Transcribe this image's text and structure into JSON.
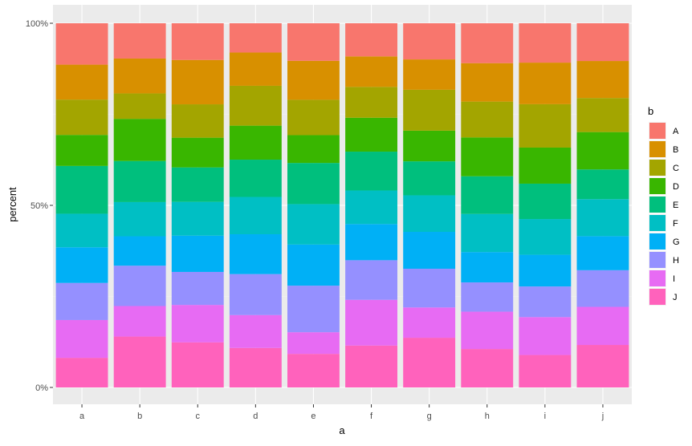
{
  "chart_data": {
    "type": "bar",
    "stacked": true,
    "normalized": true,
    "title": "",
    "xlabel": "a",
    "ylabel": "percent",
    "ylim": [
      0,
      1
    ],
    "y_ticks": [
      "0%",
      "50%",
      "100%"
    ],
    "categories": [
      "a",
      "b",
      "c",
      "d",
      "e",
      "f",
      "g",
      "h",
      "i",
      "j"
    ],
    "legend_title": "b",
    "legend_position": "right",
    "grid": true,
    "series": [
      {
        "name": "A",
        "color": "#F8766D",
        "values": [
          0.116,
          0.097,
          0.1,
          0.08,
          0.104,
          0.087,
          0.099,
          0.109,
          0.108,
          0.103
        ]
      },
      {
        "name": "B",
        "color": "#D89000",
        "values": [
          0.098,
          0.096,
          0.121,
          0.091,
          0.108,
          0.08,
          0.083,
          0.105,
          0.114,
          0.101
        ]
      },
      {
        "name": "C",
        "color": "#A3A500",
        "values": [
          0.099,
          0.07,
          0.091,
          0.109,
          0.098,
          0.081,
          0.112,
          0.098,
          0.119,
          0.093
        ]
      },
      {
        "name": "D",
        "color": "#39B600",
        "values": [
          0.087,
          0.116,
          0.081,
          0.093,
          0.077,
          0.089,
          0.084,
          0.106,
          0.099,
          0.102
        ]
      },
      {
        "name": "E",
        "color": "#00BF7D",
        "values": [
          0.134,
          0.113,
          0.094,
          0.102,
          0.114,
          0.102,
          0.093,
          0.103,
          0.097,
          0.081
        ]
      },
      {
        "name": "F",
        "color": "#00BFC4",
        "values": [
          0.094,
          0.094,
          0.092,
          0.102,
          0.112,
          0.088,
          0.1,
          0.104,
          0.098,
          0.101
        ]
      },
      {
        "name": "G",
        "color": "#00B0F6",
        "values": [
          0.1,
          0.081,
          0.099,
          0.109,
          0.114,
          0.095,
          0.101,
          0.083,
          0.087,
          0.093
        ]
      },
      {
        "name": "H",
        "color": "#9590FF",
        "values": [
          0.104,
          0.111,
          0.09,
          0.112,
          0.129,
          0.104,
          0.106,
          0.08,
          0.084,
          0.1
        ]
      },
      {
        "name": "I",
        "color": "#E76BF3",
        "values": [
          0.106,
          0.084,
          0.102,
          0.09,
          0.06,
          0.12,
          0.083,
          0.102,
          0.104,
          0.104
        ]
      },
      {
        "name": "J",
        "color": "#FF62BC",
        "values": [
          0.083,
          0.14,
          0.123,
          0.108,
          0.093,
          0.11,
          0.136,
          0.105,
          0.089,
          0.116
        ]
      }
    ]
  }
}
